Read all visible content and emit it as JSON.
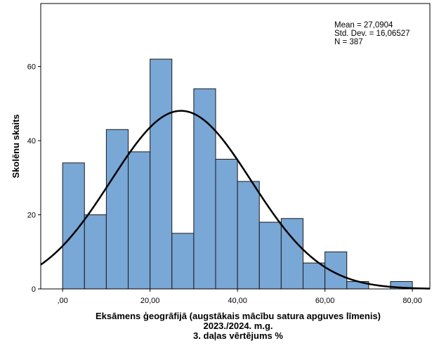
{
  "chart_data": {
    "type": "bar",
    "subtype": "histogram-with-normal-curve",
    "bin_width": 5,
    "bins": [
      {
        "from": 0,
        "to": 5,
        "count": 34
      },
      {
        "from": 5,
        "to": 10,
        "count": 20
      },
      {
        "from": 10,
        "to": 15,
        "count": 43
      },
      {
        "from": 15,
        "to": 20,
        "count": 37
      },
      {
        "from": 20,
        "to": 25,
        "count": 62
      },
      {
        "from": 25,
        "to": 30,
        "count": 15
      },
      {
        "from": 30,
        "to": 35,
        "count": 54
      },
      {
        "from": 35,
        "to": 40,
        "count": 35
      },
      {
        "from": 40,
        "to": 45,
        "count": 29
      },
      {
        "from": 45,
        "to": 50,
        "count": 18
      },
      {
        "from": 50,
        "to": 55,
        "count": 19
      },
      {
        "from": 55,
        "to": 60,
        "count": 7
      },
      {
        "from": 60,
        "to": 65,
        "count": 10
      },
      {
        "from": 65,
        "to": 70,
        "count": 2
      },
      {
        "from": 70,
        "to": 75,
        "count": 0
      },
      {
        "from": 75,
        "to": 80,
        "count": 2
      }
    ],
    "normal_curve": {
      "mean": 27.0904,
      "std_dev": 16.06527,
      "n": 387
    },
    "xlim": [
      -5,
      84
    ],
    "ylim": [
      0,
      77
    ],
    "x_ticks": [
      {
        "value": 0,
        "label": ",00"
      },
      {
        "value": 20,
        "label": "20,00"
      },
      {
        "value": 40,
        "label": "40,00"
      },
      {
        "value": 60,
        "label": "60,00"
      },
      {
        "value": 80,
        "label": "80,00"
      }
    ],
    "y_ticks": [
      {
        "value": 0,
        "label": "0"
      },
      {
        "value": 20,
        "label": "20"
      },
      {
        "value": 40,
        "label": "40"
      },
      {
        "value": 60,
        "label": "60"
      }
    ],
    "xlabel_lines": [
      "Eksāmens ģeogrāfijā (augstākais mācību satura apguves līmenis)",
      "2023./2024. m.g.",
      "3. daļas vērtējums %"
    ],
    "ylabel": "Skolēnu skaits",
    "stats_lines": [
      "Mean = 27,0904",
      "Std. Dev. = 16,06527",
      "N = 387"
    ],
    "stats_position": "top-right",
    "grid": false,
    "colors": {
      "bar_fill": "#79a7d6",
      "bar_stroke": "#1a1a1a",
      "curve": "#000000",
      "axis": "#000000",
      "text": "#000000"
    }
  }
}
